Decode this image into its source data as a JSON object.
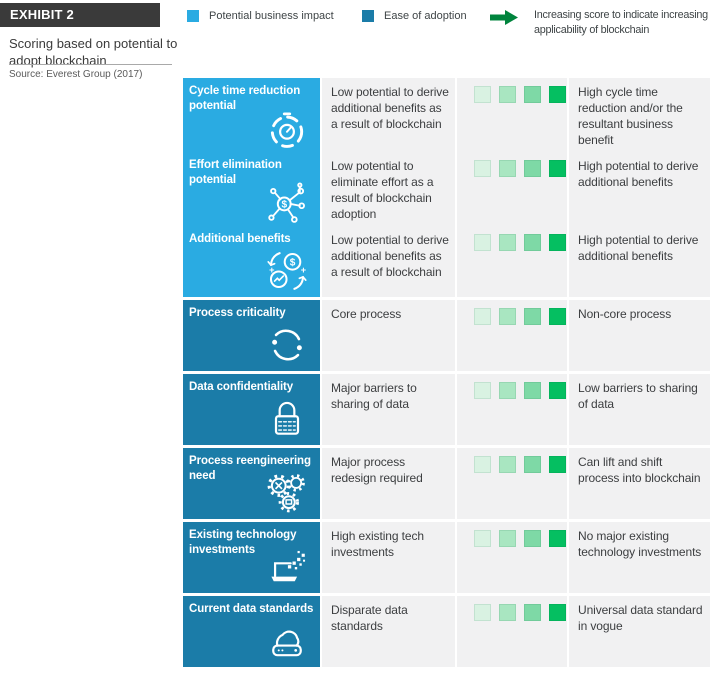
{
  "exhibit": {
    "tag": "EXHIBIT 2",
    "title": "Scoring based on potential to adopt blockchain",
    "source": "Source: Everest Group (2017)"
  },
  "legend": {
    "items": [
      {
        "label": "Potential business impact",
        "color": "#2aabe2"
      },
      {
        "label": "Ease of adoption",
        "color": "#1b7ca8"
      }
    ],
    "arrow": {
      "label": "Increasing score to indicate increasing applicability of blockchain",
      "color": "#00843d"
    }
  },
  "colors": {
    "impact": "#2aabe2",
    "adoption": "#1b7ca8",
    "arrow": "#00843d",
    "exhibit_bar": "#3a3a3a",
    "cell_bg": "#f1f1f2"
  },
  "table": {
    "scale_colors": [
      "#d9f2e2",
      "#a9e6c1",
      "#7ed9a6",
      "#05bf61"
    ],
    "rows": [
      {
        "title": "Cycle time reduction potential",
        "icon": "stopwatch-icon",
        "group": "impact",
        "low": "Low potential to derive additional benefits as a result of blockchain",
        "high": "High cycle time reduction and/or the resultant business benefit"
      },
      {
        "title": "Effort elimination potential",
        "icon": "network-dollar-icon",
        "group": "impact",
        "low": "Low potential to eliminate effort as a result of blockchain adoption",
        "high": "High potential to derive additional benefits"
      },
      {
        "title": "Additional benefits",
        "icon": "coins-exchange-icon",
        "group": "impact",
        "low": "Low potential to derive additional benefits as a result of blockchain",
        "high": "High potential to derive additional benefits"
      },
      {
        "title": "Process criticality",
        "icon": "process-cycle-icon",
        "group": "adoption",
        "low": "Core process",
        "high": "Non-core process"
      },
      {
        "title": "Data confidentiality",
        "icon": "padlock-icon",
        "group": "adoption",
        "low": "Major barriers to sharing of data",
        "high": "Low barriers to sharing of data"
      },
      {
        "title": "Process reengineering need",
        "icon": "gears-icon",
        "group": "adoption",
        "low": "Major process redesign required",
        "high": "Can lift and shift process into blockchain"
      },
      {
        "title": "Existing technology investments",
        "icon": "laptop-tech-icon",
        "group": "adoption",
        "low": "High existing tech investments",
        "high": "No major existing technology investments"
      },
      {
        "title": "Current data standards",
        "icon": "data-drive-icon",
        "group": "adoption",
        "low": "Disparate data standards",
        "high": "Universal data standard in vogue"
      }
    ]
  }
}
